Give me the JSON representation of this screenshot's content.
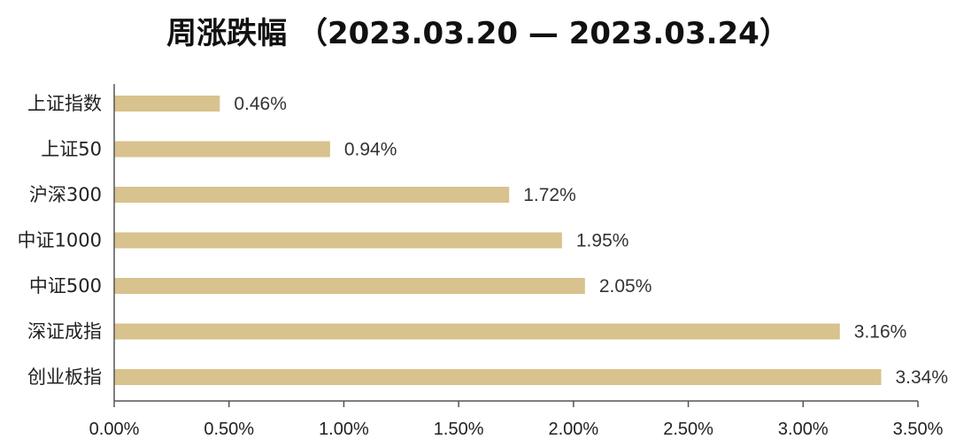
{
  "chart_data": {
    "type": "bar",
    "orientation": "horizontal",
    "title": "周涨跌幅 （2023.03.20 — 2023.03.24）",
    "xlabel": "",
    "ylabel": "",
    "categories": [
      "上证指数",
      "上证50",
      "沪深300",
      "中证1000",
      "中证500",
      "深证成指",
      "创业板指"
    ],
    "values": [
      0.46,
      0.94,
      1.72,
      1.95,
      2.05,
      3.16,
      3.34
    ],
    "value_labels": [
      "0.46%",
      "0.94%",
      "1.72%",
      "1.95%",
      "2.05%",
      "3.16%",
      "3.34%"
    ],
    "unit": "%",
    "xlim": [
      0,
      3.5
    ],
    "xticks": [
      0,
      0.5,
      1.0,
      1.5,
      2.0,
      2.5,
      3.0,
      3.5
    ],
    "xtick_labels": [
      "0.00%",
      "0.50%",
      "1.00%",
      "1.50%",
      "2.00%",
      "2.50%",
      "3.00%",
      "3.50%"
    ],
    "grid": false,
    "legend": "none",
    "bar_color": "#D8C28D",
    "axis_color": "#555555"
  }
}
